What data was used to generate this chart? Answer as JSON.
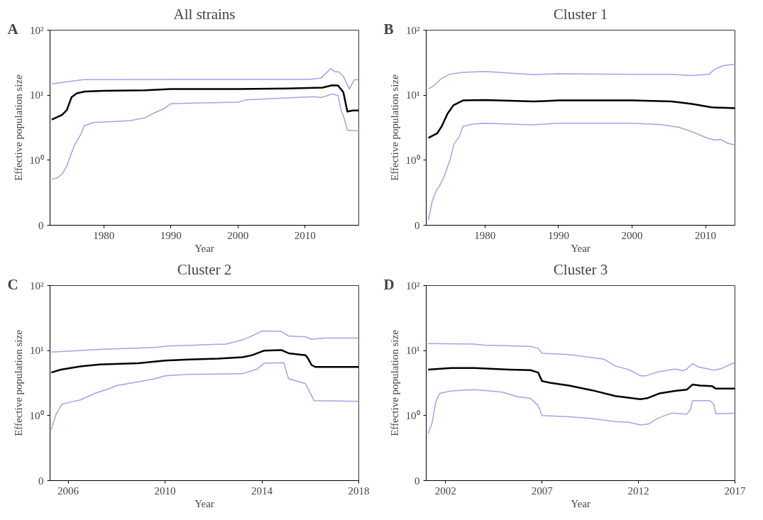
{
  "chart_data": [
    {
      "type": "line",
      "title": "All strains",
      "xlabel": "Year",
      "ylabel": "Effective population size",
      "annotations": [
        "A"
      ],
      "log": "y",
      "grid": false,
      "xlim": [
        1972,
        2018
      ],
      "xticks": [
        1980,
        1990,
        2000,
        2010
      ],
      "ylim": [
        0.1,
        100
      ],
      "yticks": [
        {
          "value": 0.1,
          "label": "0"
        },
        {
          "value": 1,
          "label": "10⁰"
        },
        {
          "value": 10,
          "label": "10¹"
        },
        {
          "value": 100,
          "label": "10²"
        }
      ],
      "series": [
        {
          "color": "#a3a3e3",
          "x": [
            1972.25,
            1974.9,
            1977,
            1990,
            2010.5,
            2012.4,
            2013.8,
            2014.5,
            2015,
            2015.7,
            2016.6,
            2017.3,
            2018
          ],
          "values": [
            14.9,
            16.3,
            17.3,
            17.4,
            17.4,
            18.4,
            25.6,
            22.9,
            22.9,
            19.5,
            12.4,
            17.2,
            17.2
          ]
        },
        {
          "color": "#a3a3e3",
          "x": [
            1972.25,
            1973,
            1973.8,
            1974.5,
            1975.6,
            1976.5,
            1977.1,
            1978.4,
            1984,
            1986.2,
            1987.6,
            1989,
            1990,
            2000,
            2001.3,
            2007.3,
            2011.5,
            2012.4,
            2014,
            2014.9,
            2015.4,
            2015.8,
            2016.3,
            2018
          ],
          "values": [
            0.51,
            0.53,
            0.61,
            0.82,
            1.68,
            2.4,
            3.37,
            3.8,
            4.06,
            4.5,
            5.4,
            6.2,
            7.4,
            7.8,
            8.5,
            9.1,
            9.5,
            9.2,
            10.4,
            9.9,
            5.7,
            4.5,
            2.9,
            2.8
          ]
        },
        {
          "color": "#000000",
          "x": [
            1972.25,
            1973.8,
            1974.5,
            1975.2,
            1976,
            1977.2,
            1980,
            1986.2,
            1990,
            2000,
            2007.3,
            2012.6,
            2014,
            2014.9,
            2015.7,
            2016.3,
            2017.1,
            2018
          ],
          "values": [
            4.2,
            5.0,
            5.9,
            9.3,
            10.7,
            11.4,
            11.7,
            11.9,
            12.4,
            12.4,
            12.7,
            13.1,
            14.2,
            14.1,
            11.1,
            5.6,
            5.8,
            5.8
          ]
        }
      ]
    },
    {
      "type": "line",
      "title": "Cluster 1",
      "xlabel": "Year",
      "ylabel": "Effective population size",
      "annotations": [
        "B"
      ],
      "log": "y",
      "grid": false,
      "xlim": [
        1972,
        2014
      ],
      "xticks": [
        1980,
        1990,
        2000,
        2010
      ],
      "ylim": [
        0.1,
        100
      ],
      "yticks": [
        {
          "value": 0.1,
          "label": "0"
        },
        {
          "value": 1,
          "label": "10⁰"
        },
        {
          "value": 10,
          "label": "10¹"
        },
        {
          "value": 100,
          "label": "10²"
        }
      ],
      "series": [
        {
          "color": "#a3a3e3",
          "x": [
            1972.3,
            1973,
            1974,
            1975.2,
            1977,
            1980,
            1986.7,
            1990,
            2000,
            2005.4,
            2008,
            2010.5,
            2011.2,
            2012.4,
            2014
          ],
          "values": [
            12.5,
            13.9,
            17.8,
            21,
            22.5,
            23.1,
            20.7,
            21.4,
            21,
            21,
            20,
            21,
            24.9,
            28.5,
            29.9
          ]
        },
        {
          "color": "#a3a3e3",
          "x": [
            1972.3,
            1972.8,
            1973.3,
            1973.8,
            1974.4,
            1975.2,
            1975.8,
            1976.5,
            1977,
            1978.4,
            1980,
            1986.4,
            1990,
            2000,
            2003.8,
            2006.4,
            2008.3,
            2010.2,
            2011.2,
            2012.1,
            2013.1,
            2014
          ],
          "values": [
            0.12,
            0.23,
            0.33,
            0.4,
            0.55,
            0.98,
            1.79,
            2.3,
            3.3,
            3.6,
            3.7,
            3.5,
            3.7,
            3.7,
            3.55,
            3.2,
            2.7,
            2.2,
            2.05,
            2.07,
            1.81,
            1.72
          ]
        },
        {
          "color": "#000000",
          "x": [
            1972.3,
            1973.5,
            1974.1,
            1974.9,
            1975.7,
            1977,
            1980,
            1986.7,
            1990,
            2000,
            2005.4,
            2007,
            2008.3,
            2010.8,
            2014
          ],
          "values": [
            2.2,
            2.6,
            3.3,
            5.2,
            7.0,
            8.3,
            8.4,
            8.0,
            8.3,
            8.3,
            8.0,
            7.6,
            7.3,
            6.5,
            6.3
          ]
        }
      ]
    },
    {
      "type": "line",
      "title": "Cluster 2",
      "xlabel": "Year",
      "ylabel": "Effective population size",
      "annotations": [
        "C"
      ],
      "log": "y",
      "grid": false,
      "xlim": [
        2005.25,
        2018
      ],
      "xticks": [
        2006,
        2010,
        2014,
        2018
      ],
      "ylim": [
        0.1,
        100
      ],
      "yticks": [
        {
          "value": 0.1,
          "label": "0"
        },
        {
          "value": 1,
          "label": "10⁰"
        },
        {
          "value": 10,
          "label": "10¹"
        },
        {
          "value": 100,
          "label": "10²"
        }
      ],
      "series": [
        {
          "color": "#a3a3e3",
          "x": [
            2005.3,
            2006.3,
            2007.3,
            2009.6,
            2010,
            2012.2,
            2012.5,
            2013.2,
            2013.7,
            2014,
            2014.8,
            2015.1,
            2015.8,
            2016.05,
            2016.6,
            2018
          ],
          "values": [
            9.5,
            9.9,
            10.4,
            11.2,
            11.7,
            12.5,
            12.5,
            14.6,
            17.5,
            20,
            19.7,
            16.7,
            16.3,
            14.9,
            15.6,
            15.6
          ]
        },
        {
          "color": "#a3a3e3",
          "x": [
            2005.3,
            2005.5,
            2005.75,
            2006.05,
            2006.5,
            2007.1,
            2007.7,
            2008,
            2008.9,
            2009.6,
            2010,
            2011,
            2013.2,
            2013.8,
            2014.1,
            2014.9,
            2015.1,
            2015.8,
            2016,
            2016.15,
            2018
          ],
          "values": [
            0.61,
            1.05,
            1.5,
            1.6,
            1.74,
            2.2,
            2.6,
            2.9,
            3.3,
            3.7,
            4.1,
            4.3,
            4.4,
            5.2,
            6.4,
            6.5,
            3.7,
            3.1,
            2.2,
            1.7,
            1.66
          ]
        },
        {
          "color": "#000000",
          "x": [
            2005.3,
            2005.7,
            2006.5,
            2007.3,
            2008.9,
            2010,
            2011,
            2012.2,
            2013.2,
            2013.6,
            2014.1,
            2014.8,
            2015.1,
            2015.8,
            2015.9,
            2016.05,
            2016.2,
            2018
          ],
          "values": [
            4.6,
            5.1,
            5.7,
            6.1,
            6.4,
            7.0,
            7.3,
            7.5,
            7.9,
            8.5,
            10.0,
            10.2,
            9.1,
            8.5,
            7.6,
            6.0,
            5.6,
            5.6
          ]
        }
      ]
    },
    {
      "type": "line",
      "title": "Cluster 3",
      "xlabel": "Year",
      "ylabel": "Effective population size",
      "annotations": [
        "D"
      ],
      "log": "y",
      "grid": false,
      "xlim": [
        2001,
        2017
      ],
      "xticks": [
        2002,
        2007,
        2012,
        2017
      ],
      "ylim": [
        0.1,
        100
      ],
      "yticks": [
        {
          "value": 0.1,
          "label": "0"
        },
        {
          "value": 1,
          "label": "10⁰"
        },
        {
          "value": 10,
          "label": "10¹"
        },
        {
          "value": 100,
          "label": "10²"
        }
      ],
      "series": [
        {
          "color": "#a3a3e3",
          "x": [
            2001.1,
            2003.5,
            2004,
            2006.4,
            2006.8,
            2007,
            2008.4,
            2010.2,
            2010.8,
            2011.5,
            2012.1,
            2012.4,
            2013,
            2013.9,
            2014.3,
            2014.5,
            2014.8,
            2015.1,
            2015.9,
            2016.3,
            2017
          ],
          "values": [
            12.8,
            12.6,
            12.1,
            11.6,
            10.8,
            9.1,
            8.7,
            7.4,
            5.8,
            5.1,
            4.1,
            4.1,
            4.7,
            5.2,
            4.9,
            5.2,
            6.3,
            5.6,
            5.0,
            5.3,
            6.6
          ]
        },
        {
          "color": "#a3a3e3",
          "x": [
            2001.1,
            2001.3,
            2001.5,
            2001.7,
            2002.3,
            2003.5,
            2004.95,
            2005.7,
            2006.4,
            2006.8,
            2007,
            2008.4,
            2009.6,
            2010.8,
            2011.5,
            2012.1,
            2012.5,
            2013,
            2013.7,
            2013.9,
            2014.5,
            2014.7,
            2014.8,
            2015.7,
            2015.9,
            2016,
            2017
          ],
          "values": [
            0.53,
            0.76,
            1.64,
            2.2,
            2.4,
            2.5,
            2.3,
            1.96,
            1.84,
            1.43,
            1.0,
            0.96,
            0.9,
            0.81,
            0.79,
            0.72,
            0.74,
            0.91,
            1.09,
            1.09,
            1.05,
            1.25,
            1.7,
            1.7,
            1.5,
            1.07,
            1.09
          ]
        },
        {
          "color": "#000000",
          "x": [
            2001.1,
            2002.3,
            2003.5,
            2005.3,
            2006.4,
            2006.8,
            2007,
            2007.4,
            2008.4,
            2009.6,
            2010.8,
            2012.1,
            2012.5,
            2013.1,
            2013.9,
            2014.5,
            2014.8,
            2015.2,
            2015.8,
            2016,
            2017
          ],
          "values": [
            5.1,
            5.4,
            5.4,
            5.1,
            5.0,
            4.6,
            3.4,
            3.2,
            2.9,
            2.45,
            2.0,
            1.79,
            1.87,
            2.2,
            2.4,
            2.5,
            3.0,
            2.9,
            2.85,
            2.6,
            2.6
          ]
        }
      ]
    }
  ]
}
